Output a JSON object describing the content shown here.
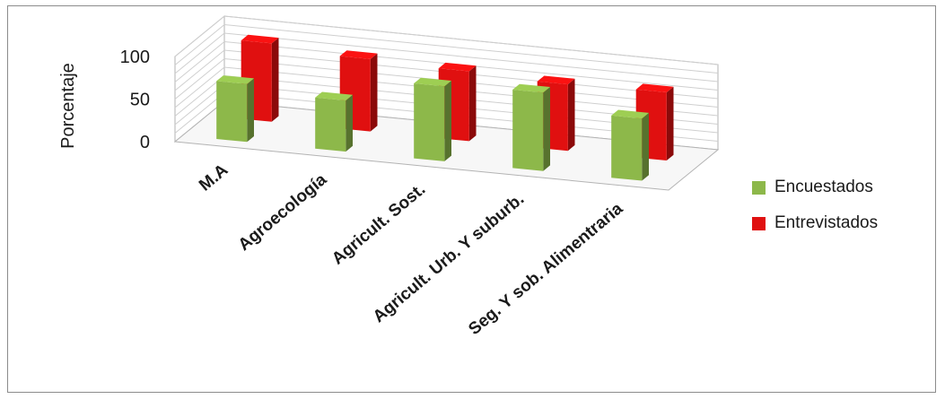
{
  "chart_data": {
    "type": "bar",
    "title": "",
    "ylabel": "Porcentaje",
    "xlabel": "",
    "ylim": [
      0,
      100
    ],
    "yticks": [
      0,
      50,
      100
    ],
    "categories": [
      "M.A",
      "Agroecología",
      "Agricult. Sost.",
      "Agricult. Urb. Y suburb.",
      "Seg. Y sob. Alimentraria"
    ],
    "series": [
      {
        "name": "Encuestados",
        "values": [
          68,
          60,
          88,
          92,
          73
        ],
        "color": "#8db84a"
      },
      {
        "name": "Entrevistados",
        "values": [
          92,
          85,
          82,
          78,
          80
        ],
        "color": "#e01010"
      }
    ],
    "legend_position": "right",
    "grid": true,
    "view": "3d-perspective"
  }
}
